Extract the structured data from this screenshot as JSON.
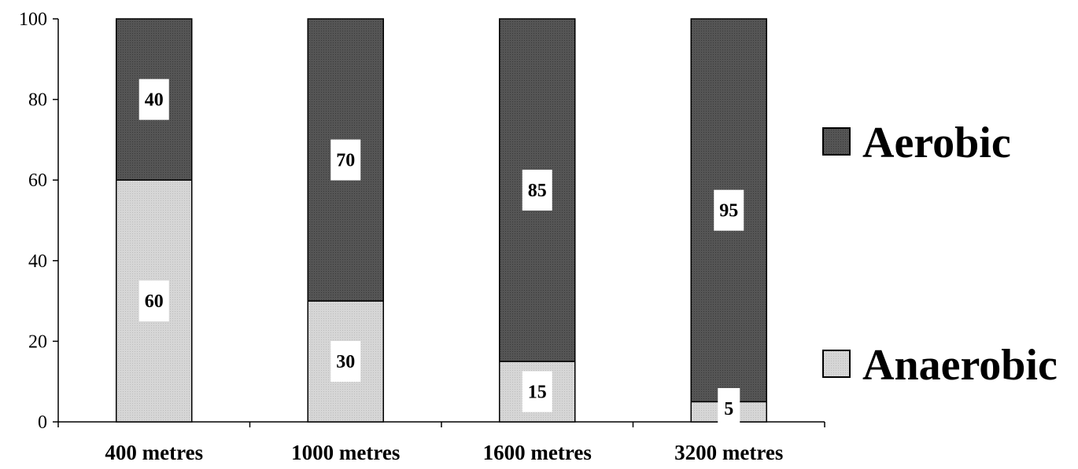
{
  "chart_data": {
    "type": "bar",
    "stacked": true,
    "categories": [
      "400 metres",
      "1000 metres",
      "1600 metres",
      "3200 metres"
    ],
    "series": [
      {
        "name": "Anaerobic",
        "values": [
          60,
          30,
          15,
          5
        ],
        "color": "#d0d0d0"
      },
      {
        "name": "Aerobic",
        "values": [
          40,
          70,
          85,
          95
        ],
        "color": "#505050"
      }
    ],
    "ylim": [
      0,
      100
    ],
    "yticks": [
      0,
      20,
      40,
      60,
      80,
      100
    ],
    "title": "",
    "xlabel": "",
    "ylabel": "",
    "grid": false,
    "legend_position": "right",
    "legend_order": [
      "Aerobic",
      "Anaerobic"
    ]
  }
}
